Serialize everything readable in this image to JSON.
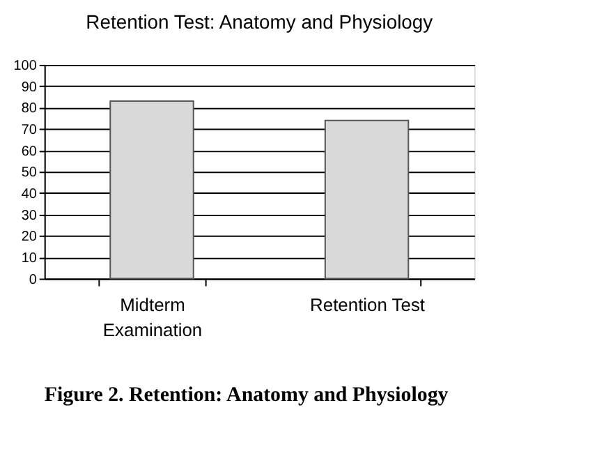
{
  "chart_data": {
    "type": "bar",
    "title": "Retention Test:  Anatomy and Physiology",
    "categories": [
      "Midterm Examination",
      "Retention Test"
    ],
    "values": [
      83,
      74
    ],
    "color": "#d9d9d9",
    "ylim": [
      0,
      100
    ],
    "yticks": [
      0,
      10,
      20,
      30,
      40,
      50,
      60,
      70,
      80,
      90,
      100
    ],
    "grid": "y",
    "annotations": [
      "Figure 2.  Retention: Anatomy and Physiology"
    ]
  }
}
